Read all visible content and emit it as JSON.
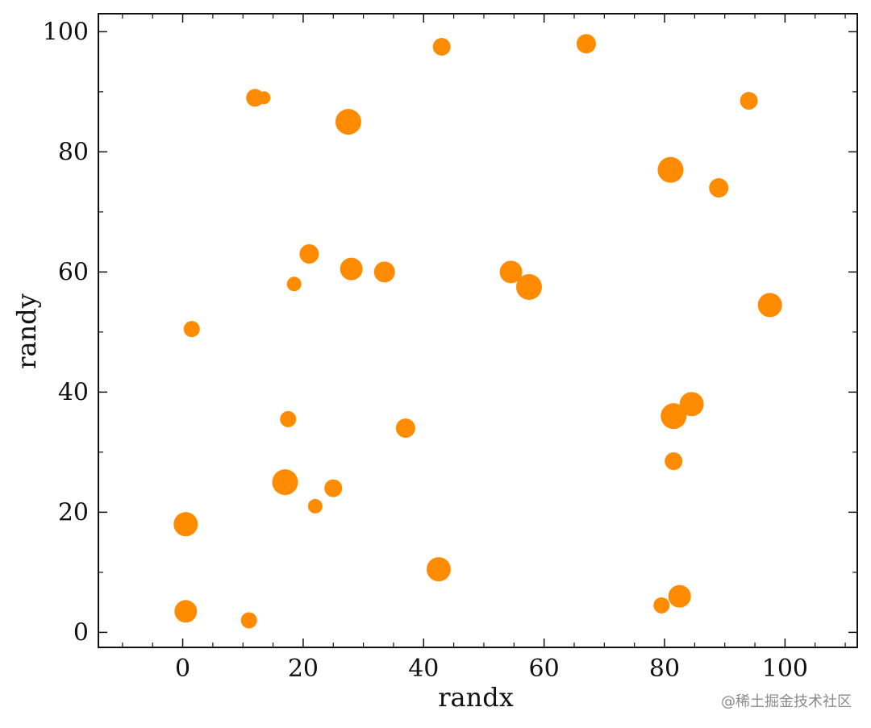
{
  "chart_data": {
    "type": "scatter",
    "title": "",
    "xlabel": "randx",
    "ylabel": "randy",
    "xlim": [
      -14,
      112
    ],
    "ylim": [
      -2.5,
      103
    ],
    "xticks": [
      0,
      20,
      40,
      60,
      80,
      100
    ],
    "yticks": [
      0,
      20,
      40,
      60,
      80,
      100
    ],
    "x_tick_labels": [
      "0",
      "20",
      "40",
      "60",
      "80",
      "100"
    ],
    "y_tick_labels": [
      "0",
      "20",
      "40",
      "60",
      "80",
      "100"
    ],
    "grid": false,
    "legend": "none",
    "marker_color": "#ff8c00",
    "points": [
      {
        "x": 43,
        "y": 97.5,
        "size": 11
      },
      {
        "x": 67,
        "y": 98,
        "size": 12
      },
      {
        "x": 12,
        "y": 89,
        "size": 11
      },
      {
        "x": 13.5,
        "y": 89,
        "size": 8
      },
      {
        "x": 27.5,
        "y": 85,
        "size": 16
      },
      {
        "x": 94,
        "y": 88.5,
        "size": 11
      },
      {
        "x": 81,
        "y": 77,
        "size": 16
      },
      {
        "x": 89,
        "y": 74,
        "size": 12
      },
      {
        "x": 21,
        "y": 63,
        "size": 12
      },
      {
        "x": 18.5,
        "y": 58,
        "size": 9
      },
      {
        "x": 28,
        "y": 60.5,
        "size": 14
      },
      {
        "x": 33.5,
        "y": 60,
        "size": 13
      },
      {
        "x": 54.5,
        "y": 60,
        "size": 14
      },
      {
        "x": 57.5,
        "y": 57.5,
        "size": 16
      },
      {
        "x": 97.5,
        "y": 54.5,
        "size": 15
      },
      {
        "x": 1.5,
        "y": 50.5,
        "size": 10
      },
      {
        "x": 17.5,
        "y": 35.5,
        "size": 10
      },
      {
        "x": 37,
        "y": 34,
        "size": 12
      },
      {
        "x": 84.5,
        "y": 38,
        "size": 15
      },
      {
        "x": 81.5,
        "y": 36,
        "size": 16
      },
      {
        "x": 81.5,
        "y": 28.5,
        "size": 11
      },
      {
        "x": 17,
        "y": 25,
        "size": 16
      },
      {
        "x": 25,
        "y": 24,
        "size": 11
      },
      {
        "x": 22,
        "y": 21,
        "size": 9
      },
      {
        "x": 0.5,
        "y": 18,
        "size": 15
      },
      {
        "x": 42.5,
        "y": 10.5,
        "size": 15
      },
      {
        "x": 0.5,
        "y": 3.5,
        "size": 14
      },
      {
        "x": 11,
        "y": 2,
        "size": 10
      },
      {
        "x": 79.5,
        "y": 4.5,
        "size": 10
      },
      {
        "x": 82.5,
        "y": 6,
        "size": 14
      }
    ]
  },
  "watermark": "@稀土掘金技术社区"
}
